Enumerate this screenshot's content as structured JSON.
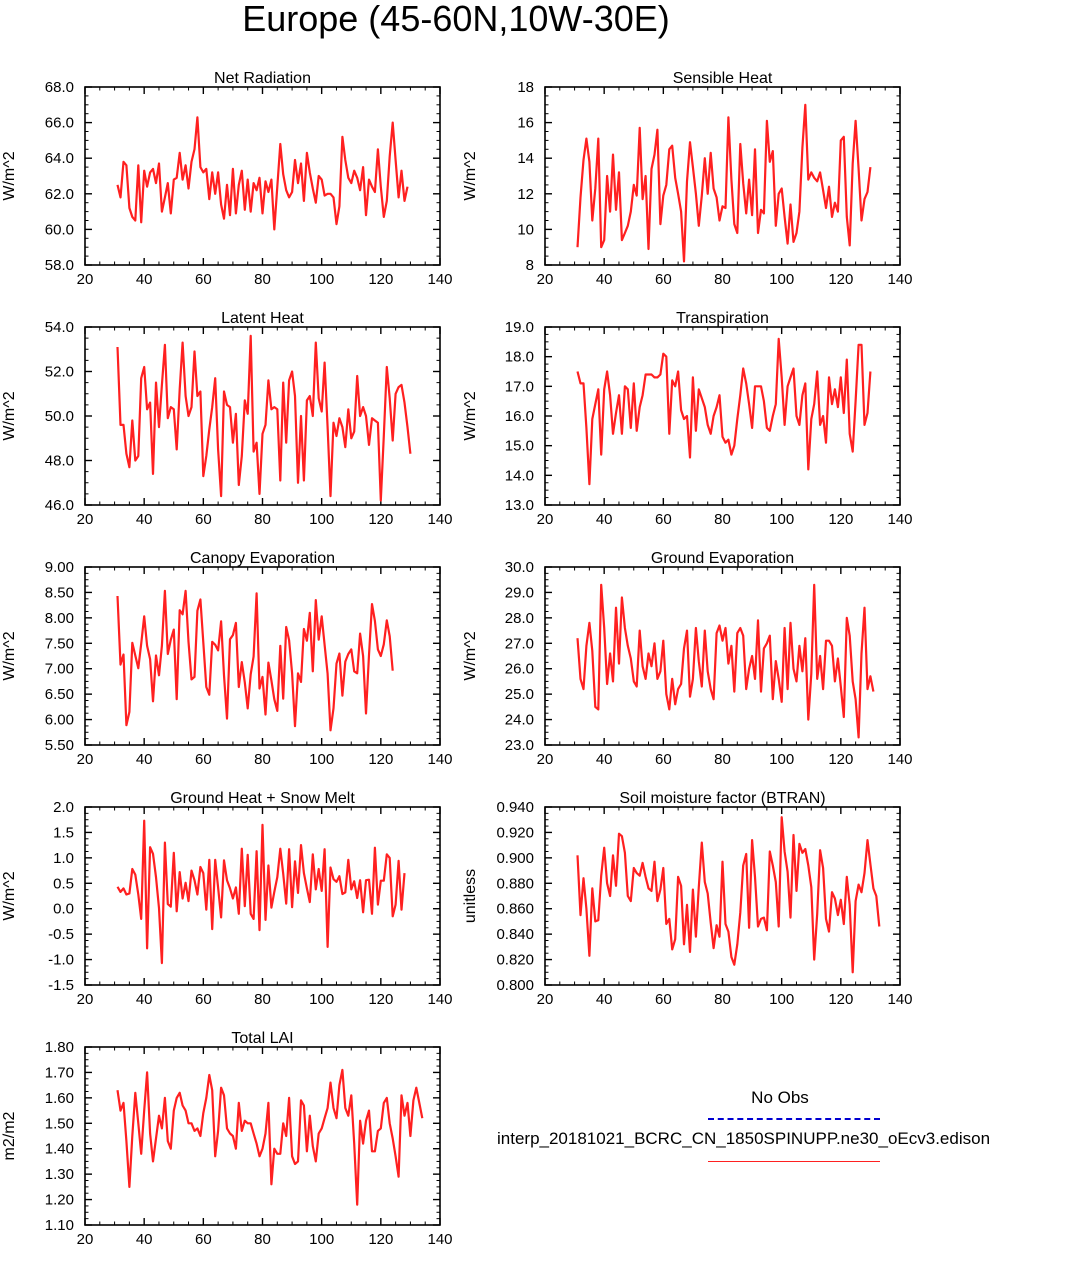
{
  "title": "Europe (45-60N,10W-30E)",
  "legend": {
    "obs_label": "No Obs",
    "obs_color": "#0000d0",
    "model_label": "interp_20181021_BCRC_CN_1850SPINUPP.ne30_oEcv3.edison",
    "model_color": "#ff2020"
  },
  "chart_data": [
    {
      "type": "line",
      "title": "Net Radiation",
      "ylabel": "W/m^2",
      "xlim": [
        20,
        140
      ],
      "ylim": [
        58,
        68
      ],
      "xticks": [
        "20",
        "40",
        "60",
        "80",
        "100",
        "120",
        "140"
      ],
      "yticks": [
        "58.0",
        "60.0",
        "62.0",
        "64.0",
        "66.0",
        "68.0"
      ],
      "x_start": 31,
      "values": [
        62.5,
        61.8,
        63.8,
        63.6,
        61.2,
        60.7,
        60.5,
        63.6,
        60.4,
        63.3,
        62.4,
        63.2,
        63.4,
        62.6,
        63.7,
        61.0,
        61.8,
        62.6,
        60.9,
        62.8,
        62.9,
        64.3,
        62.8,
        63.6,
        62.3,
        63.8,
        64.5,
        66.3,
        63.5,
        63.2,
        63.4,
        61.7,
        63.2,
        62.0,
        63.2,
        61.4,
        60.6,
        62.5,
        60.8,
        63.4,
        60.9,
        62.5,
        63.3,
        61.1,
        62.8,
        61.0,
        62.6,
        62.2,
        62.9,
        60.9,
        62.7,
        62.1,
        62.8,
        60.0,
        62.4,
        64.8,
        63.1,
        62.2,
        61.8,
        62.1,
        63.9,
        62.6,
        63.7,
        61.6,
        64.3,
        63.2,
        62.3,
        61.5,
        63.0,
        62.8,
        61.9,
        62.0,
        62.0,
        61.8,
        60.3,
        61.3,
        65.2,
        63.9,
        62.9,
        62.6,
        63.3,
        62.9,
        62.2,
        63.5,
        60.8,
        62.8,
        62.4,
        62.1,
        64.5,
        62.4,
        60.7,
        61.6,
        64.1,
        66.0,
        63.9,
        61.8,
        63.3,
        61.6,
        62.4
      ]
    },
    {
      "type": "line",
      "title": "Sensible Heat",
      "ylabel": "W/m^2",
      "xlim": [
        20,
        140
      ],
      "ylim": [
        8,
        18
      ],
      "xticks": [
        "20",
        "40",
        "60",
        "80",
        "100",
        "120",
        "140"
      ],
      "yticks": [
        "8",
        "10",
        "12",
        "14",
        "16",
        "18"
      ],
      "x_start": 31,
      "values": [
        9.0,
        11.8,
        13.9,
        15.1,
        13.8,
        10.5,
        12.3,
        15.1,
        9.0,
        9.4,
        13.0,
        11.0,
        14.2,
        11.1,
        13.2,
        9.4,
        9.8,
        10.2,
        11.0,
        12.5,
        11.9,
        15.7,
        11.7,
        13.0,
        8.9,
        13.4,
        14.2,
        15.6,
        10.3,
        11.9,
        12.5,
        14.5,
        14.7,
        12.9,
        12.0,
        11.0,
        8.2,
        12.7,
        14.9,
        13.5,
        12.0,
        10.2,
        11.9,
        14.0,
        12.0,
        14.3,
        12.3,
        11.8,
        10.5,
        11.3,
        11.2,
        16.3,
        12.8,
        10.3,
        9.8,
        14.8,
        12.6,
        10.9,
        12.8,
        10.8,
        14.5,
        9.8,
        11.1,
        10.9,
        16.1,
        13.8,
        14.4,
        10.2,
        12.0,
        12.3,
        10.7,
        9.2,
        11.4,
        9.3,
        9.8,
        11.0,
        14.6,
        17.0,
        12.8,
        13.2,
        12.9,
        12.7,
        13.2,
        12.2,
        11.2,
        12.4,
        10.7,
        11.5,
        11.0,
        15.0,
        15.2,
        10.7,
        9.1,
        13.7,
        16.1,
        13.4,
        10.5,
        11.7,
        12.1,
        13.5
      ]
    },
    {
      "type": "line",
      "title": "Latent Heat",
      "ylabel": "W/m^2",
      "xlim": [
        20,
        140
      ],
      "ylim": [
        46,
        54
      ],
      "xticks": [
        "20",
        "40",
        "60",
        "80",
        "100",
        "120",
        "140"
      ],
      "yticks": [
        "46.0",
        "48.0",
        "50.0",
        "52.0",
        "54.0"
      ],
      "x_start": 31,
      "values": [
        53.1,
        49.6,
        49.6,
        48.3,
        47.7,
        49.8,
        48.0,
        48.2,
        51.7,
        52.2,
        50.3,
        50.6,
        47.4,
        51.5,
        49.5,
        51.4,
        53.2,
        49.9,
        50.4,
        50.3,
        48.5,
        51.2,
        53.3,
        50.9,
        50.0,
        50.4,
        52.9,
        50.9,
        51.1,
        47.3,
        48.2,
        49.4,
        50.4,
        51.7,
        48.5,
        46.4,
        51.1,
        50.5,
        50.4,
        48.8,
        50.1,
        46.9,
        48.2,
        50.7,
        50.1,
        53.6,
        48.4,
        48.8,
        46.5,
        49.2,
        49.6,
        51.6,
        50.3,
        50.4,
        50.3,
        47.1,
        51.5,
        48.8,
        51.6,
        52.0,
        50.9,
        47.0,
        50.0,
        47.1,
        50.7,
        50.9,
        50.0,
        53.3,
        50.8,
        50.2,
        52.4,
        49.5,
        46.4,
        49.7,
        49.1,
        49.9,
        49.5,
        48.6,
        50.3,
        49.0,
        49.3,
        51.8,
        50.0,
        50.4,
        50.0,
        48.7,
        49.9,
        49.8,
        49.7,
        46.2,
        49.1,
        52.2,
        50.8,
        48.9,
        51.0,
        51.3,
        51.4,
        50.6,
        49.5,
        48.3
      ]
    },
    {
      "type": "line",
      "title": "Transpiration",
      "ylabel": "W/m^2",
      "xlim": [
        20,
        140
      ],
      "ylim": [
        13,
        19
      ],
      "xticks": [
        "20",
        "40",
        "60",
        "80",
        "100",
        "120",
        "140"
      ],
      "yticks": [
        "13.0",
        "14.0",
        "15.0",
        "16.0",
        "17.0",
        "18.0",
        "19.0"
      ],
      "x_start": 31,
      "values": [
        17.5,
        17.1,
        17.1,
        15.6,
        13.7,
        15.9,
        16.4,
        16.9,
        14.7,
        16.9,
        17.5,
        16.7,
        15.4,
        16.1,
        16.7,
        15.4,
        17.0,
        16.9,
        15.6,
        17.1,
        15.5,
        16.3,
        16.7,
        17.4,
        17.4,
        17.4,
        17.3,
        17.3,
        17.4,
        18.1,
        18.0,
        15.4,
        17.2,
        17.0,
        17.5,
        16.2,
        15.9,
        16.0,
        14.6,
        17.3,
        15.5,
        16.9,
        16.6,
        16.3,
        15.7,
        15.4,
        16.0,
        16.3,
        16.7,
        15.3,
        15.1,
        15.2,
        14.7,
        15.0,
        15.9,
        16.7,
        17.6,
        17.1,
        16.4,
        15.6,
        17.0,
        17.0,
        17.0,
        16.5,
        15.6,
        15.5,
        16.0,
        16.4,
        18.6,
        17.3,
        15.7,
        17.0,
        17.3,
        17.6,
        16.0,
        15.7,
        16.7,
        17.1,
        14.2,
        15.9,
        16.4,
        17.5,
        15.7,
        16.0,
        15.1,
        17.3,
        16.4,
        16.9,
        16.3,
        17.3,
        16.1,
        17.9,
        15.4,
        14.8,
        16.5,
        18.4,
        18.4,
        15.7,
        16.1,
        17.5
      ]
    },
    {
      "type": "line",
      "title": "Canopy Evaporation",
      "ylabel": "W/m^2",
      "xlim": [
        20,
        140
      ],
      "ylim": [
        5.5,
        9.0
      ],
      "xticks": [
        "20",
        "40",
        "60",
        "80",
        "100",
        "120",
        "140"
      ],
      "yticks": [
        "5.50",
        "6.00",
        "6.50",
        "7.00",
        "7.50",
        "8.00",
        "8.50",
        "9.00"
      ],
      "x_start": 31,
      "values": [
        8.43,
        7.08,
        7.28,
        5.89,
        6.15,
        7.51,
        7.26,
        7.01,
        7.49,
        8.03,
        7.45,
        7.19,
        6.36,
        7.26,
        6.87,
        7.45,
        8.53,
        7.29,
        7.57,
        7.77,
        6.4,
        8.15,
        8.07,
        8.53,
        7.53,
        6.79,
        6.84,
        8.14,
        8.36,
        7.52,
        6.64,
        6.49,
        7.53,
        7.47,
        7.36,
        7.93,
        6.87,
        6.02,
        7.58,
        7.66,
        7.9,
        6.64,
        7.13,
        6.73,
        6.22,
        6.89,
        7.24,
        8.48,
        6.61,
        6.84,
        6.1,
        7.12,
        6.77,
        6.4,
        6.17,
        7.45,
        6.41,
        7.82,
        7.56,
        6.91,
        5.87,
        6.91,
        6.74,
        7.78,
        7.55,
        8.1,
        6.95,
        8.35,
        7.57,
        8.03,
        7.47,
        6.9,
        5.79,
        6.22,
        7.1,
        7.3,
        6.47,
        7.14,
        7.29,
        7.38,
        6.95,
        6.91,
        7.69,
        7.25,
        6.12,
        7.27,
        8.27,
        7.94,
        7.38,
        7.25,
        7.48,
        7.95,
        7.64,
        6.96
      ]
    },
    {
      "type": "line",
      "title": "Ground Evaporation",
      "ylabel": "W/m^2",
      "xlim": [
        20,
        140
      ],
      "ylim": [
        23,
        30
      ],
      "xticks": [
        "20",
        "40",
        "60",
        "80",
        "100",
        "120",
        "140"
      ],
      "yticks": [
        "23.0",
        "24.0",
        "25.0",
        "26.0",
        "27.0",
        "28.0",
        "29.0",
        "30.0"
      ],
      "x_start": 31,
      "values": [
        27.2,
        25.6,
        25.2,
        26.9,
        27.8,
        26.7,
        24.5,
        24.4,
        29.3,
        27.6,
        25.4,
        26.6,
        25.5,
        28.4,
        26.2,
        28.8,
        27.6,
        26.9,
        26.4,
        25.5,
        25.3,
        27.5,
        26.1,
        25.6,
        26.6,
        26.1,
        27.0,
        25.6,
        25.9,
        27.1,
        25.0,
        24.4,
        25.6,
        24.6,
        25.2,
        25.4,
        26.8,
        27.5,
        24.9,
        25.6,
        27.6,
        26.3,
        25.3,
        27.5,
        25.9,
        25.2,
        24.8,
        27.4,
        27.7,
        27.1,
        27.6,
        26.2,
        26.9,
        25.1,
        27.4,
        27.6,
        27.3,
        25.2,
        26.0,
        26.5,
        25.6,
        27.9,
        25.1,
        26.8,
        27.0,
        27.3,
        24.8,
        26.3,
        25.6,
        24.7,
        27.6,
        25.2,
        27.8,
        26.0,
        25.5,
        26.9,
        25.9,
        27.2,
        24.0,
        25.8,
        29.3,
        25.6,
        26.5,
        25.2,
        27.1,
        27.1,
        26.9,
        25.5,
        26.4,
        25.3,
        24.1,
        28.0,
        27.3,
        25.5,
        24.8,
        23.3,
        26.6,
        28.4,
        25.2,
        25.7,
        25.1
      ]
    },
    {
      "type": "line",
      "title": "Ground Heat + Snow Melt",
      "ylabel": "W/m^2",
      "xlim": [
        20,
        140
      ],
      "ylim": [
        -1.5,
        2.0
      ],
      "xticks": [
        "20",
        "40",
        "60",
        "80",
        "100",
        "120",
        "140"
      ],
      "yticks": [
        "-1.5",
        "-1.0",
        "-0.5",
        "0.0",
        "0.5",
        "1.0",
        "1.5",
        "2.0"
      ],
      "x_start": 31,
      "values": [
        0.43,
        0.33,
        0.4,
        0.28,
        0.3,
        0.78,
        0.67,
        0.28,
        -0.2,
        1.73,
        -0.78,
        1.21,
        1.08,
        0.62,
        0.01,
        -1.07,
        1.3,
        0.09,
        0.04,
        1.1,
        -0.05,
        0.72,
        0.2,
        0.51,
        0.15,
        0.75,
        0.56,
        0.28,
        0.82,
        0.7,
        -0.02,
        0.96,
        -0.4,
        0.96,
        0.42,
        -0.17,
        0.95,
        0.56,
        0.4,
        0.2,
        0.42,
        -0.1,
        1.18,
        0.05,
        1.06,
        -0.1,
        -0.2,
        1.13,
        -0.42,
        1.65,
        -0.22,
        0.85,
        0.02,
        0.33,
        0.62,
        1.18,
        0.69,
        0.1,
        1.17,
        0.03,
        0.93,
        0.31,
        1.25,
        0.7,
        0.4,
        0.13,
        1.07,
        0.38,
        0.78,
        0.35,
        1.17,
        -0.75,
        0.81,
        0.58,
        0.53,
        0.64,
        0.29,
        0.32,
        0.96,
        0.38,
        0.54,
        0.21,
        0.56,
        -0.07,
        0.56,
        0.57,
        -0.1,
        1.2,
        0.08,
        0.55,
        0.55,
        1.07,
        1.0,
        -0.15,
        0.08,
        0.94,
        -0.02,
        0.7
      ]
    },
    {
      "type": "line",
      "title": "Soil moisture factor (BTRAN)",
      "ylabel": "unitless",
      "xlim": [
        20,
        140
      ],
      "ylim": [
        0.8,
        0.94
      ],
      "xticks": [
        "20",
        "40",
        "60",
        "80",
        "100",
        "120",
        "140"
      ],
      "yticks": [
        "0.800",
        "0.820",
        "0.840",
        "0.860",
        "0.880",
        "0.900",
        "0.920",
        "0.940"
      ],
      "x_start": 31,
      "values": [
        0.902,
        0.855,
        0.884,
        0.86,
        0.823,
        0.876,
        0.85,
        0.851,
        0.886,
        0.908,
        0.88,
        0.87,
        0.902,
        0.878,
        0.919,
        0.917,
        0.904,
        0.87,
        0.866,
        0.892,
        0.888,
        0.886,
        0.896,
        0.885,
        0.876,
        0.874,
        0.897,
        0.866,
        0.875,
        0.892,
        0.848,
        0.852,
        0.828,
        0.836,
        0.885,
        0.878,
        0.832,
        0.863,
        0.826,
        0.875,
        0.838,
        0.877,
        0.912,
        0.881,
        0.872,
        0.849,
        0.829,
        0.847,
        0.838,
        0.897,
        0.848,
        0.842,
        0.822,
        0.816,
        0.832,
        0.857,
        0.894,
        0.903,
        0.845,
        0.914,
        0.885,
        0.846,
        0.852,
        0.853,
        0.843,
        0.905,
        0.894,
        0.881,
        0.846,
        0.932,
        0.905,
        0.889,
        0.853,
        0.918,
        0.874,
        0.911,
        0.904,
        0.907,
        0.894,
        0.877,
        0.82,
        0.856,
        0.906,
        0.892,
        0.852,
        0.842,
        0.873,
        0.868,
        0.855,
        0.867,
        0.848,
        0.885,
        0.863,
        0.81,
        0.866,
        0.879,
        0.873,
        0.888,
        0.914,
        0.895,
        0.876,
        0.87,
        0.846
      ]
    },
    {
      "type": "line",
      "title": "Total LAI",
      "ylabel": "m2/m2",
      "xlim": [
        20,
        140
      ],
      "ylim": [
        1.1,
        1.8
      ],
      "xticks": [
        "20",
        "40",
        "60",
        "80",
        "100",
        "120",
        "140"
      ],
      "yticks": [
        "1.10",
        "1.20",
        "1.30",
        "1.40",
        "1.50",
        "1.60",
        "1.70",
        "1.80"
      ],
      "x_start": 31,
      "values": [
        1.63,
        1.55,
        1.58,
        1.43,
        1.25,
        1.45,
        1.62,
        1.5,
        1.38,
        1.55,
        1.7,
        1.46,
        1.35,
        1.44,
        1.53,
        1.48,
        1.6,
        1.43,
        1.4,
        1.55,
        1.6,
        1.62,
        1.57,
        1.55,
        1.5,
        1.5,
        1.47,
        1.48,
        1.45,
        1.54,
        1.6,
        1.69,
        1.63,
        1.37,
        1.47,
        1.64,
        1.61,
        1.48,
        1.46,
        1.45,
        1.4,
        1.58,
        1.47,
        1.51,
        1.5,
        1.5,
        1.46,
        1.42,
        1.37,
        1.4,
        1.46,
        1.58,
        1.26,
        1.4,
        1.38,
        1.38,
        1.5,
        1.45,
        1.6,
        1.37,
        1.34,
        1.35,
        1.59,
        1.57,
        1.39,
        1.53,
        1.41,
        1.35,
        1.46,
        1.48,
        1.52,
        1.56,
        1.66,
        1.56,
        1.52,
        1.65,
        1.71,
        1.56,
        1.53,
        1.61,
        1.42,
        1.18,
        1.51,
        1.42,
        1.51,
        1.55,
        1.39,
        1.39,
        1.47,
        1.48,
        1.58,
        1.6,
        1.5,
        1.44,
        1.37,
        1.29,
        1.61,
        1.53,
        1.58,
        1.45,
        1.59,
        1.64,
        1.58,
        1.52
      ]
    }
  ]
}
